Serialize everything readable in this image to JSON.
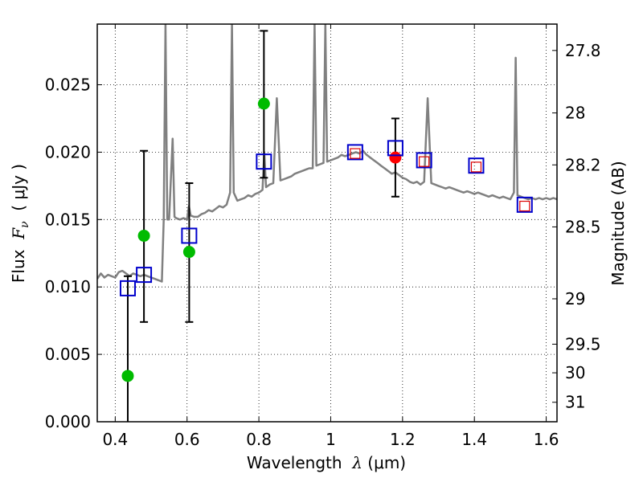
{
  "chart_data": {
    "type": "scatter",
    "title": "",
    "xlabel": {
      "pre": "Wavelength  ",
      "var": "λ",
      "unit": " (μm)"
    },
    "ylabel": {
      "pre": "Flux  ",
      "var": "F",
      "sub": "ν",
      "unit": "  ( μJy )"
    },
    "y2label": "Magnitude (AB)",
    "xlim": [
      0.35,
      1.63
    ],
    "ylim": [
      0.0,
      0.0295
    ],
    "grid": true,
    "x_ticks": [
      {
        "v": 0.4,
        "label": "0.4"
      },
      {
        "v": 0.6,
        "label": "0.6"
      },
      {
        "v": 0.8,
        "label": "0.8"
      },
      {
        "v": 1.0,
        "label": "1"
      },
      {
        "v": 1.2,
        "label": "1.2"
      },
      {
        "v": 1.4,
        "label": "1.4"
      },
      {
        "v": 1.6,
        "label": "1.6"
      }
    ],
    "y_ticks": [
      {
        "v": 0.0,
        "label": "0.000"
      },
      {
        "v": 0.005,
        "label": "0.005"
      },
      {
        "v": 0.01,
        "label": "0.010"
      },
      {
        "v": 0.015,
        "label": "0.015"
      },
      {
        "v": 0.02,
        "label": "0.020"
      },
      {
        "v": 0.025,
        "label": "0.025"
      }
    ],
    "mag_ticks": [
      {
        "mag": 27.8,
        "label": "27.8"
      },
      {
        "mag": 28,
        "label": "28"
      },
      {
        "mag": 28.2,
        "label": "28.2"
      },
      {
        "mag": 28.5,
        "label": "28.5"
      },
      {
        "mag": 29,
        "label": "29"
      },
      {
        "mag": 29.5,
        "label": "29.5"
      },
      {
        "mag": 30,
        "label": "30"
      },
      {
        "mag": 31,
        "label": "31"
      }
    ],
    "series": [
      {
        "kind": "model_sed_line",
        "color": "#808080",
        "points": [
          [
            0.35,
            0.0106
          ],
          [
            0.36,
            0.011
          ],
          [
            0.37,
            0.0107
          ],
          [
            0.38,
            0.0109
          ],
          [
            0.39,
            0.0108
          ],
          [
            0.4,
            0.0107
          ],
          [
            0.41,
            0.0111
          ],
          [
            0.42,
            0.0112
          ],
          [
            0.43,
            0.011
          ],
          [
            0.44,
            0.0108
          ],
          [
            0.45,
            0.011
          ],
          [
            0.46,
            0.0109
          ],
          [
            0.47,
            0.0108
          ],
          [
            0.48,
            0.0109
          ],
          [
            0.49,
            0.0108
          ],
          [
            0.5,
            0.0107
          ],
          [
            0.51,
            0.0106
          ],
          [
            0.52,
            0.0105
          ],
          [
            0.53,
            0.0104
          ],
          [
            0.535,
            0.015
          ],
          [
            0.54,
            0.0295
          ],
          [
            0.545,
            0.015
          ],
          [
            0.55,
            0.015
          ],
          [
            0.56,
            0.021
          ],
          [
            0.565,
            0.0152
          ],
          [
            0.57,
            0.0151
          ],
          [
            0.58,
            0.015
          ],
          [
            0.59,
            0.0151
          ],
          [
            0.6,
            0.015
          ],
          [
            0.605,
            0.016
          ],
          [
            0.61,
            0.0153
          ],
          [
            0.62,
            0.0152
          ],
          [
            0.63,
            0.0152
          ],
          [
            0.64,
            0.0154
          ],
          [
            0.65,
            0.0155
          ],
          [
            0.66,
            0.0157
          ],
          [
            0.67,
            0.0156
          ],
          [
            0.68,
            0.0158
          ],
          [
            0.69,
            0.016
          ],
          [
            0.7,
            0.0159
          ],
          [
            0.71,
            0.0161
          ],
          [
            0.72,
            0.017
          ],
          [
            0.725,
            0.0295
          ],
          [
            0.73,
            0.017
          ],
          [
            0.74,
            0.0164
          ],
          [
            0.75,
            0.0165
          ],
          [
            0.76,
            0.0166
          ],
          [
            0.77,
            0.0168
          ],
          [
            0.78,
            0.0167
          ],
          [
            0.79,
            0.0169
          ],
          [
            0.8,
            0.017
          ],
          [
            0.81,
            0.0172
          ],
          [
            0.815,
            0.02
          ],
          [
            0.82,
            0.0174
          ],
          [
            0.83,
            0.0176
          ],
          [
            0.84,
            0.0177
          ],
          [
            0.85,
            0.024
          ],
          [
            0.86,
            0.0179
          ],
          [
            0.87,
            0.018
          ],
          [
            0.88,
            0.0181
          ],
          [
            0.89,
            0.0182
          ],
          [
            0.9,
            0.0184
          ],
          [
            0.91,
            0.0185
          ],
          [
            0.92,
            0.0186
          ],
          [
            0.93,
            0.0187
          ],
          [
            0.94,
            0.0188
          ],
          [
            0.95,
            0.0188
          ],
          [
            0.955,
            0.0295
          ],
          [
            0.96,
            0.019
          ],
          [
            0.97,
            0.0191
          ],
          [
            0.98,
            0.0192
          ],
          [
            0.985,
            0.0295
          ],
          [
            0.99,
            0.0193
          ],
          [
            1.0,
            0.0194
          ],
          [
            1.01,
            0.0195
          ],
          [
            1.02,
            0.0196
          ],
          [
            1.03,
            0.0198
          ],
          [
            1.04,
            0.0197
          ],
          [
            1.05,
            0.0198
          ],
          [
            1.06,
            0.0199
          ],
          [
            1.07,
            0.02
          ],
          [
            1.08,
            0.0199
          ],
          [
            1.09,
            0.0201
          ],
          [
            1.1,
            0.0198
          ],
          [
            1.11,
            0.0196
          ],
          [
            1.12,
            0.0194
          ],
          [
            1.13,
            0.0192
          ],
          [
            1.14,
            0.019
          ],
          [
            1.15,
            0.0188
          ],
          [
            1.16,
            0.0186
          ],
          [
            1.17,
            0.0184
          ],
          [
            1.18,
            0.0185
          ],
          [
            1.19,
            0.0183
          ],
          [
            1.2,
            0.0181
          ],
          [
            1.21,
            0.018
          ],
          [
            1.22,
            0.0178
          ],
          [
            1.23,
            0.0177
          ],
          [
            1.24,
            0.0178
          ],
          [
            1.25,
            0.0176
          ],
          [
            1.26,
            0.0178
          ],
          [
            1.27,
            0.024
          ],
          [
            1.28,
            0.0177
          ],
          [
            1.29,
            0.0176
          ],
          [
            1.3,
            0.0175
          ],
          [
            1.31,
            0.0174
          ],
          [
            1.32,
            0.0173
          ],
          [
            1.33,
            0.0174
          ],
          [
            1.34,
            0.0173
          ],
          [
            1.35,
            0.0172
          ],
          [
            1.36,
            0.0171
          ],
          [
            1.37,
            0.017
          ],
          [
            1.38,
            0.0171
          ],
          [
            1.39,
            0.017
          ],
          [
            1.4,
            0.0169
          ],
          [
            1.41,
            0.017
          ],
          [
            1.42,
            0.0169
          ],
          [
            1.43,
            0.0168
          ],
          [
            1.44,
            0.0167
          ],
          [
            1.45,
            0.0168
          ],
          [
            1.46,
            0.0167
          ],
          [
            1.47,
            0.0166
          ],
          [
            1.48,
            0.0167
          ],
          [
            1.49,
            0.0166
          ],
          [
            1.5,
            0.0165
          ],
          [
            1.51,
            0.017
          ],
          [
            1.515,
            0.027
          ],
          [
            1.52,
            0.0168
          ],
          [
            1.53,
            0.0167
          ],
          [
            1.54,
            0.0166
          ],
          [
            1.55,
            0.0165
          ],
          [
            1.56,
            0.0166
          ],
          [
            1.57,
            0.0165
          ],
          [
            1.58,
            0.0166
          ],
          [
            1.59,
            0.0165
          ],
          [
            1.6,
            0.0166
          ],
          [
            1.61,
            0.0165
          ],
          [
            1.62,
            0.0166
          ],
          [
            1.63,
            0.0165
          ]
        ]
      },
      {
        "kind": "observed_detection",
        "color": "#00bb00",
        "points": [
          {
            "x": 0.435,
            "y": 0.0034
          },
          {
            "x": 0.48,
            "y": 0.0138
          },
          {
            "x": 0.606,
            "y": 0.0126
          },
          {
            "x": 0.814,
            "y": 0.0236
          }
        ]
      },
      {
        "kind": "observed_red",
        "color": "#ff0000",
        "points": [
          {
            "x": 1.18,
            "y": 0.0196
          }
        ]
      },
      {
        "kind": "errorbars",
        "color": "#000000",
        "bars": [
          {
            "x": 0.435,
            "lo": 0.0,
            "hi": 0.0108
          },
          {
            "x": 0.48,
            "lo": 0.0074,
            "hi": 0.0201
          },
          {
            "x": 0.606,
            "lo": 0.0074,
            "hi": 0.0177
          },
          {
            "x": 0.814,
            "lo": 0.0181,
            "hi": 0.029
          },
          {
            "x": 1.18,
            "lo": 0.0167,
            "hi": 0.0225
          }
        ]
      },
      {
        "kind": "model_squares",
        "color": "#0000cc",
        "points": [
          {
            "x": 0.435,
            "y": 0.0099
          },
          {
            "x": 0.48,
            "y": 0.0109
          },
          {
            "x": 0.606,
            "y": 0.0138
          },
          {
            "x": 0.814,
            "y": 0.0193
          },
          {
            "x": 1.068,
            "y": 0.02
          },
          {
            "x": 1.18,
            "y": 0.0203
          },
          {
            "x": 1.26,
            "y": 0.0194
          },
          {
            "x": 1.405,
            "y": 0.019
          },
          {
            "x": 1.54,
            "y": 0.0161
          }
        ]
      },
      {
        "kind": "small_red_squares",
        "color": "#dd0000",
        "points": [
          {
            "x": 1.068,
            "y": 0.0199
          },
          {
            "x": 1.26,
            "y": 0.0193
          },
          {
            "x": 1.405,
            "y": 0.0189
          },
          {
            "x": 1.54,
            "y": 0.016
          }
        ]
      }
    ]
  }
}
